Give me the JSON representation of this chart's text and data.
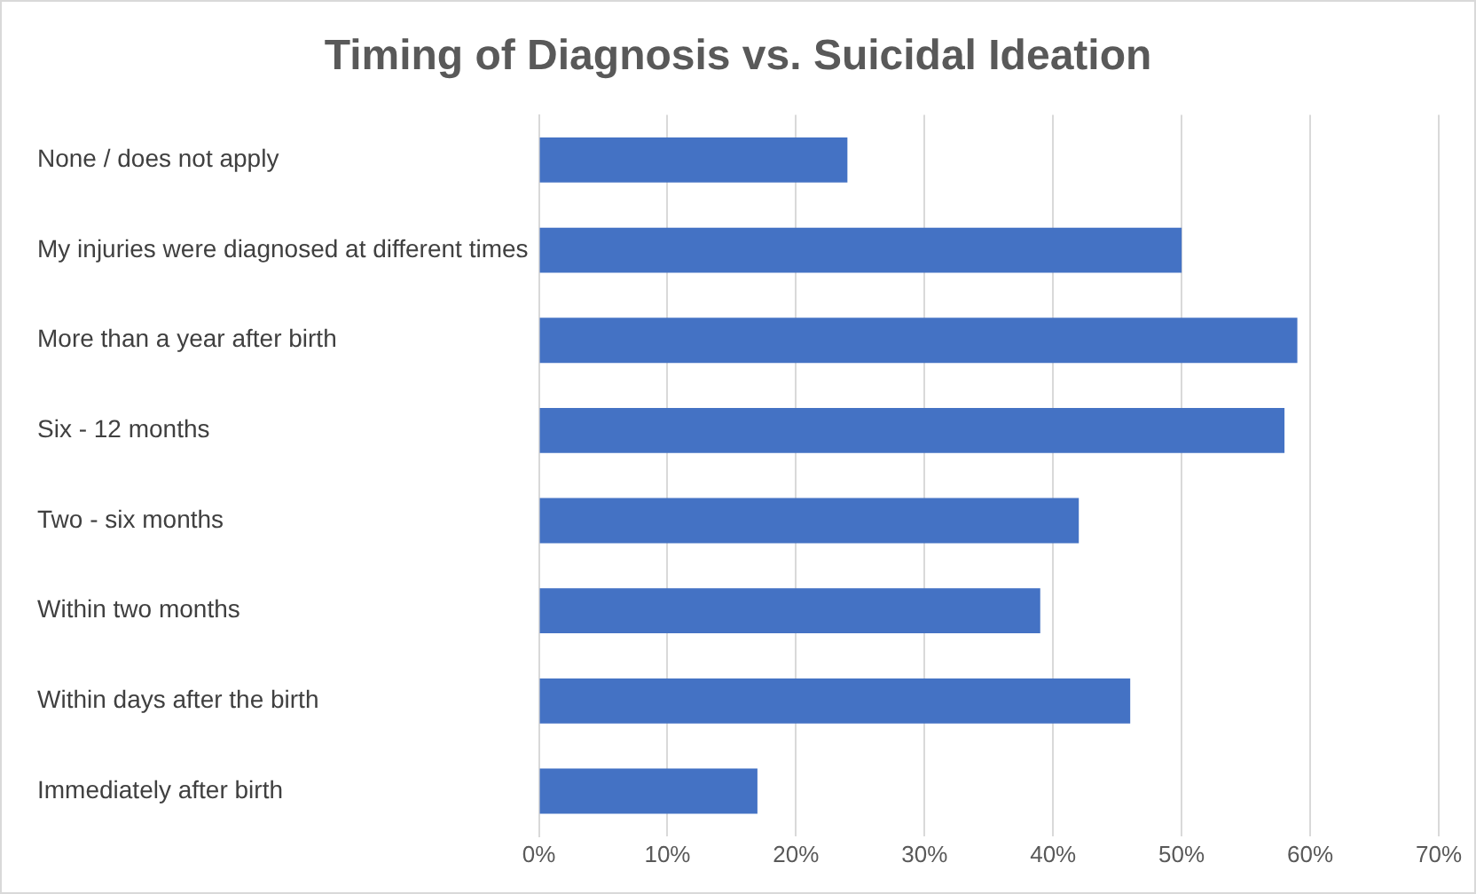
{
  "chart_data": {
    "type": "bar",
    "orientation": "horizontal",
    "title": "Timing of Diagnosis vs. Suicidal Ideation",
    "categories": [
      "None / does not apply",
      "My injuries were diagnosed at different times",
      "More than a year after birth",
      "Six - 12 months",
      "Two - six months",
      "Within two months",
      "Within days after the birth",
      "Immediately after birth"
    ],
    "values": [
      24,
      50,
      59,
      58,
      42,
      39,
      46,
      17
    ],
    "color": "#4472c4",
    "xlim": [
      0,
      70
    ],
    "xticks": [
      {
        "value": 0,
        "label": "0%"
      },
      {
        "value": 10,
        "label": "10%"
      },
      {
        "value": 20,
        "label": "20%"
      },
      {
        "value": 30,
        "label": "30%"
      },
      {
        "value": 40,
        "label": "40%"
      },
      {
        "value": 50,
        "label": "50%"
      },
      {
        "value": 60,
        "label": "60%"
      },
      {
        "value": 70,
        "label": "70%"
      }
    ],
    "grid": "x",
    "legend": false
  }
}
